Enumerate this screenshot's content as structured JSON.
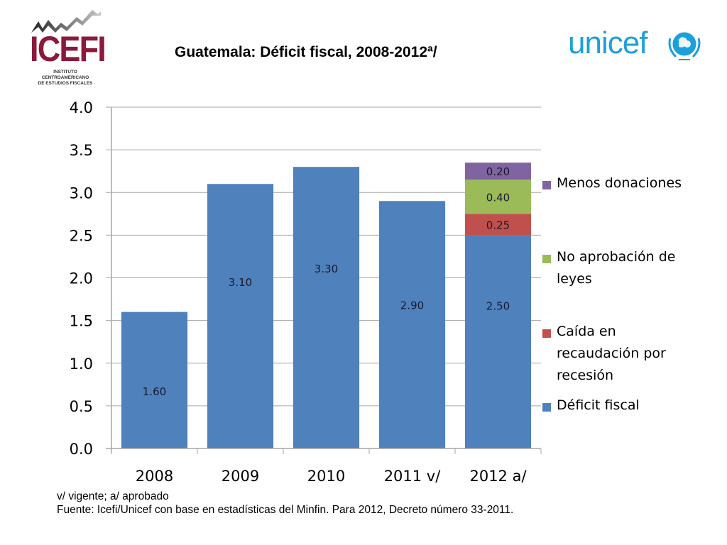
{
  "logos": {
    "left": {
      "name": "ICEFI",
      "line1": "INSTITUTO CENTROAMERICANO",
      "line2": "DE ESTUDIOS FISCALES"
    },
    "right": {
      "name": "unicef"
    }
  },
  "footnotes": {
    "line1": "v/ vigente; a/ aprobado",
    "line2": "Fuente: Icefi/Unicef con base en estadísticas del Minfin. Para 2012, Decreto número 33-2011."
  },
  "colors": {
    "deficit": "#4f81bd",
    "caida": "#c0504d",
    "no_aprobacion": "#9bbb59",
    "donaciones": "#8064a2",
    "grid": "#a6a6a6"
  },
  "chart_data": {
    "type": "bar",
    "stacked": true,
    "title": "Guatemala: Déficit fiscal, 2008-2012ª/",
    "xlabel": "",
    "ylabel": "",
    "categories": [
      "2008",
      "2009",
      "2010",
      "2011 v/",
      "2012 a/"
    ],
    "ylim": [
      0,
      4.0
    ],
    "yticks": [
      "0.0",
      "0.5",
      "1.0",
      "1.5",
      "2.0",
      "2.5",
      "3.0",
      "3.5",
      "4.0"
    ],
    "ytick_values": [
      0,
      0.5,
      1.0,
      1.5,
      2.0,
      2.5,
      3.0,
      3.5,
      4.0
    ],
    "grid": true,
    "legend_position": "right",
    "series": [
      {
        "key": "deficit",
        "name": "Déficit  fiscal",
        "values": [
          1.6,
          3.1,
          3.3,
          2.9,
          2.5
        ],
        "labels": [
          "1.60",
          "3.10",
          "3.30",
          "2.90",
          "2.50"
        ]
      },
      {
        "key": "caida",
        "name": "Caída en recaudación por recesión",
        "values": [
          null,
          null,
          null,
          null,
          0.25
        ],
        "labels": [
          null,
          null,
          null,
          null,
          "0.25"
        ]
      },
      {
        "key": "no_aprobacion",
        "name": "No aprobación de leyes",
        "values": [
          null,
          null,
          null,
          null,
          0.4
        ],
        "labels": [
          null,
          null,
          null,
          null,
          "0.40"
        ]
      },
      {
        "key": "donaciones",
        "name": "Menos donaciones",
        "values": [
          null,
          null,
          null,
          null,
          0.2
        ],
        "labels": [
          null,
          null,
          null,
          null,
          "0.20"
        ]
      }
    ],
    "legend": [
      {
        "key": "donaciones",
        "label": "Menos donaciones"
      },
      {
        "key": "no_aprobacion",
        "label": "No aprobación de leyes"
      },
      {
        "key": "caida",
        "label": "Caída en recaudación por recesión"
      },
      {
        "key": "deficit",
        "label": "Déficit  fiscal"
      }
    ]
  }
}
